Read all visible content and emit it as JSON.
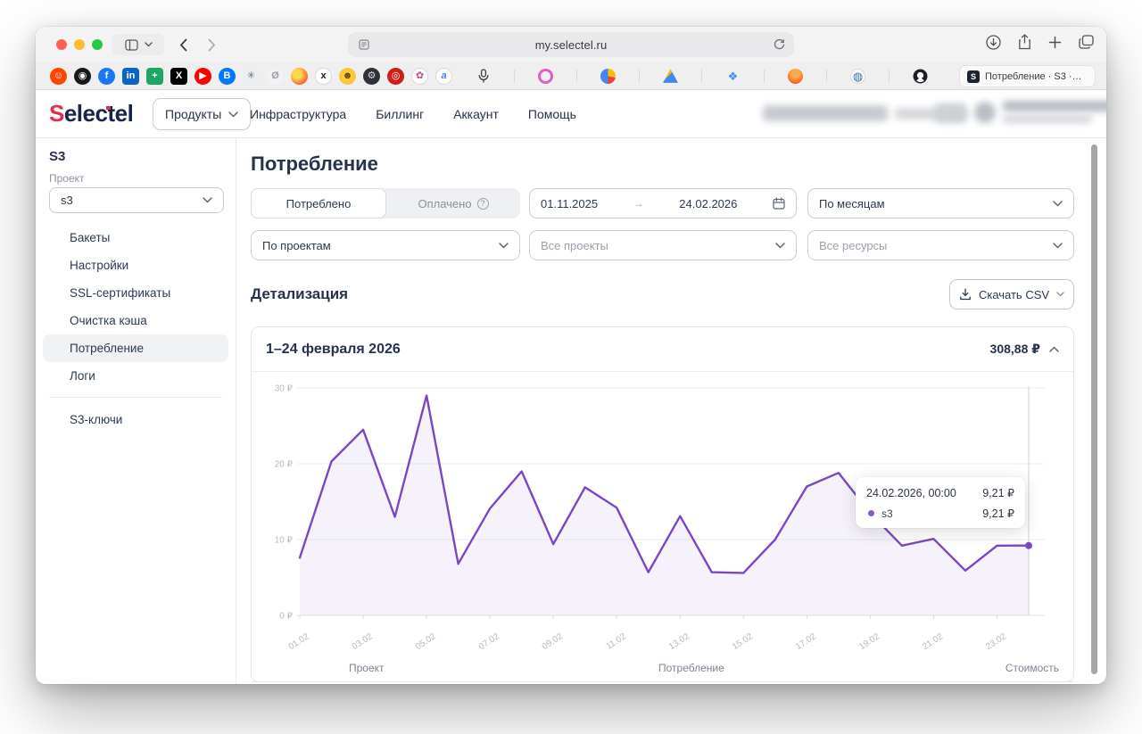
{
  "browser": {
    "url": "my.selectel.ru",
    "tab_title": "Потребление · S3 ·…",
    "tab_favicon": "S",
    "favorites": [
      {
        "name": "reddit-favicon",
        "bg": "#ff4500",
        "fg": "#ffffff",
        "glyph": "☺"
      },
      {
        "name": "instagram-favicon",
        "bg": "#18181a",
        "fg": "#ffffff",
        "glyph": "◉"
      },
      {
        "name": "facebook-favicon",
        "bg": "#1877f2",
        "fg": "#ffffff",
        "glyph": "f"
      },
      {
        "name": "linkedin-favicon",
        "bg": "#0a66c2",
        "fg": "#ffffff",
        "glyph": "in",
        "shape": "square"
      },
      {
        "name": "sheets-favicon",
        "bg": "#21a464",
        "fg": "#ffffff",
        "glyph": "+",
        "shape": "square"
      },
      {
        "name": "x-favicon",
        "bg": "#000000",
        "fg": "#ffffff",
        "glyph": "X",
        "shape": "square"
      },
      {
        "name": "youtube-favicon",
        "bg": "#ff0000",
        "fg": "#ffffff",
        "glyph": "▶"
      },
      {
        "name": "vk-favicon",
        "bg": "#0077ff",
        "fg": "#ffffff",
        "glyph": "B"
      },
      {
        "name": "asterisk-favicon",
        "bg": "#eceff1",
        "fg": "#67707c",
        "glyph": "✳"
      },
      {
        "name": "blocked-favicon",
        "bg": "#f2f2f4",
        "fg": "#9aa0a8",
        "glyph": "Ø"
      },
      {
        "name": "firefox-favicon",
        "bg": "radial-gradient(circle at 38% 38%, #ffd54d 0 30%, #ff7139 65%, #e3366b 100%)",
        "fg": "#ffffff",
        "glyph": ""
      },
      {
        "name": "x-light-favicon",
        "bg": "#ffffff",
        "fg": "#17181a",
        "glyph": "x",
        "border": true
      },
      {
        "name": "smiley-favicon",
        "bg": "#fdc63f",
        "fg": "#6b4d00",
        "glyph": "☻"
      },
      {
        "name": "gear-favicon",
        "bg": "#2e3236",
        "fg": "#d7dade",
        "glyph": "⚙"
      },
      {
        "name": "red-favicon",
        "bg": "#cf2018",
        "fg": "#ffffff",
        "glyph": "◎"
      },
      {
        "name": "flower-favicon",
        "bg": "#ffffff",
        "fg": "#d4418e",
        "glyph": "✿",
        "border": true
      },
      {
        "name": "a-favicon",
        "bg": "#ffffff",
        "fg": "#4285f4",
        "glyph": "a",
        "italic": true,
        "border": true
      }
    ],
    "pinned_tabs": [
      {
        "name": "mic-icon",
        "svg": "mic"
      },
      {
        "name": "swirl-pinned-tab",
        "shape": "ring",
        "fg": "#e75bc3"
      },
      {
        "name": "pie-pinned-tab",
        "bg": "conic-gradient(from 180deg, #4285f4 0 50%, #fbbc05 50% 78%, #ea4335 78% 100%)",
        "glyph": ""
      },
      {
        "name": "ads-pinned-tab",
        "bg": "linear-gradient(135deg,#fbbc05 0 42%,#4285f4 42% 100%)",
        "shape": "triangle",
        "glyph": ""
      },
      {
        "name": "layers-pinned-tab",
        "bg": "transparent",
        "fg": "#3f8cff",
        "glyph": "❖"
      },
      {
        "name": "gitlab-pinned-tab",
        "bg": "radial-gradient(circle at 50% 32%, #ffa94d 0 32%, #fc6d26 68%, #e24329 100%)",
        "glyph": ""
      },
      {
        "name": "globe-pinned-tab",
        "bg": "#ffffff",
        "fg": "#2f6fbe",
        "glyph": "◍",
        "border": true
      },
      {
        "name": "github-icon",
        "svg": "github"
      }
    ]
  },
  "header": {
    "logo_parts": {
      "s": "S",
      "mid": "elec",
      "t": "t",
      "end": "el"
    },
    "products_label": "Продукты",
    "nav_links": [
      "Инфраструктура",
      "Биллинг",
      "Аккаунт",
      "Помощь"
    ]
  },
  "sidebar": {
    "title": "S3",
    "project_label": "Проект",
    "project_value": "s3",
    "items": [
      "Бакеты",
      "Настройки",
      "SSL-сертификаты",
      "Очистка кэша",
      "Потребление",
      "Логи"
    ],
    "active_item": "Потребление",
    "footer_item": "S3-ключи"
  },
  "page": {
    "title": "Потребление"
  },
  "filters": {
    "toggle_consumed": "Потреблено",
    "toggle_paid": "Оплачено",
    "date_from": "01.11.2025",
    "date_to": "24.02.2026",
    "granularity": "По месяцам",
    "group_by": "По проектам",
    "projects_placeholder": "Все проекты",
    "resources_placeholder": "Все ресурсы"
  },
  "section": {
    "title": "Детализация",
    "csv_label": "Скачать CSV"
  },
  "chart_data": {
    "type": "line",
    "title": "1–24 февраля 2026",
    "total_label": "308,88 ₽",
    "x": [
      "01.02",
      "02.02",
      "03.02",
      "04.02",
      "05.02",
      "06.02",
      "07.02",
      "08.02",
      "09.02",
      "10.02",
      "11.02",
      "12.02",
      "13.02",
      "14.02",
      "15.02",
      "16.02",
      "17.02",
      "18.02",
      "19.02",
      "20.02",
      "21.02",
      "22.02",
      "23.02",
      "24.02"
    ],
    "series": [
      {
        "name": "s3",
        "color": "#7b46c3",
        "values": [
          7.6,
          20.3,
          24.5,
          13,
          29,
          6.8,
          14.1,
          19,
          9.4,
          16.9,
          14.2,
          5.7,
          13.1,
          5.7,
          5.6,
          10,
          17,
          18.8,
          13.5,
          9.2,
          10.1,
          5.9,
          9.2,
          9.21
        ]
      }
    ],
    "x_tick_labels": [
      "01.02",
      "03.02",
      "05.02",
      "07.02",
      "09.02",
      "11.02",
      "13.02",
      "15.02",
      "17.02",
      "19.02",
      "21.02",
      "23.02"
    ],
    "y_ticks": [
      0,
      10,
      20,
      30
    ],
    "y_suffix": " ₽",
    "ylim": [
      0,
      30
    ],
    "grid": "horizontal",
    "fill_opacity": 0.07,
    "hover_index": 23,
    "legend_position": "tooltip"
  },
  "tooltip": {
    "datetime": "24.02.2026, 00:00",
    "total": "9,21 ₽",
    "series_name": "s3",
    "series_value": "9,21 ₽"
  },
  "table": {
    "headers": [
      "Проект",
      "Потребление",
      "Стоимость"
    ]
  },
  "colors": {
    "accent_purple": "#7b46c3",
    "logo_red": "#e22e4d",
    "text_dark": "#26334a",
    "crosshair": "#ccd1d7"
  }
}
